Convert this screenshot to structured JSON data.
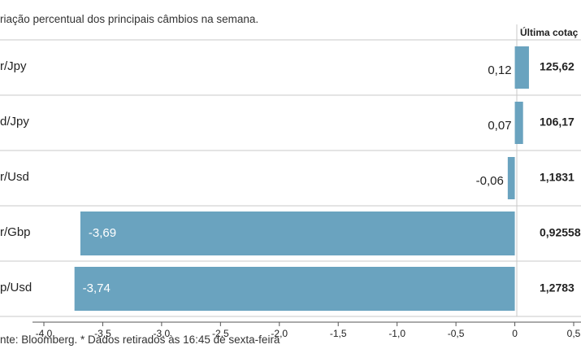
{
  "subtitle": "riação percentual dos principais câmbios na semana.",
  "last_quote_header": "Última cotaç",
  "source_note": "nte: Bloomberg.  * Dados retirados às 16:45 de sexta-feira",
  "colors": {
    "bar": "#6aa3bf",
    "grid": "#c9c9c9",
    "text": "#222222"
  },
  "chart_data": {
    "type": "bar",
    "orientation": "horizontal",
    "categories": [
      "r/Jpy",
      "d/Jpy",
      "r/Usd",
      "r/Gbp",
      "p/Usd"
    ],
    "values": [
      0.12,
      0.07,
      -0.06,
      -3.69,
      -3.74
    ],
    "value_labels": [
      "0,12",
      "0,07",
      "-0,06",
      "-3,69",
      "-3,74"
    ],
    "last_quote": [
      "125,62",
      "106,17",
      "1,1831",
      "0,92558",
      "1,2783"
    ],
    "x_ticks": [
      -4.0,
      -3.5,
      -3.0,
      -2.5,
      -2.0,
      -1.5,
      -1.0,
      -0.5,
      0,
      0.5
    ],
    "x_tick_labels": [
      "-4,0",
      "-3,5",
      "-3,0",
      "-2,5",
      "-2,0",
      "-1,5",
      "-1,0",
      "-0,5",
      "0",
      "0,5"
    ],
    "xlim": [
      -4.0,
      0.5
    ],
    "grid": false
  }
}
